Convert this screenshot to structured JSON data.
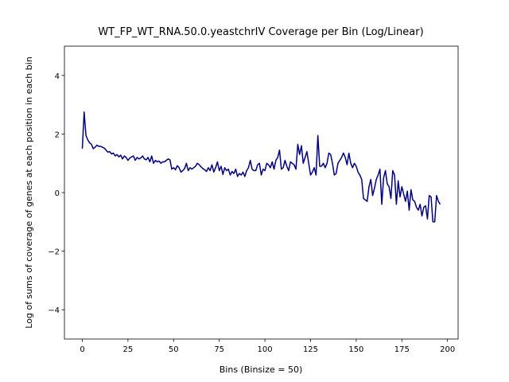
{
  "chart_data": {
    "type": "line",
    "title": "WT_FP_WT_RNA.50.0.yeastchrIV Coverage per Bin (Log/Linear)",
    "x_label": "Bins (Binsize = 50)",
    "y_label": "Log of sums of coverage of genes at each position in each bin",
    "xlim": [
      -9.8,
      205.8
    ],
    "ylim": [
      -5,
      5
    ],
    "xticks": [
      0,
      25,
      50,
      75,
      100,
      125,
      150,
      175,
      200
    ],
    "yticks": [
      {
        "value": -4,
        "label": "−4"
      },
      {
        "value": -2,
        "label": "−2"
      },
      0,
      2,
      4
    ],
    "x": [
      0,
      1,
      2,
      3,
      4,
      5,
      6,
      7,
      8,
      9,
      10,
      11,
      12,
      13,
      14,
      15,
      16,
      17,
      18,
      19,
      20,
      21,
      22,
      23,
      24,
      25,
      26,
      27,
      28,
      29,
      30,
      31,
      32,
      33,
      34,
      35,
      36,
      37,
      38,
      39,
      40,
      41,
      42,
      43,
      44,
      45,
      46,
      47,
      48,
      49,
      50,
      51,
      52,
      53,
      54,
      55,
      56,
      57,
      58,
      59,
      60,
      61,
      62,
      63,
      64,
      65,
      66,
      67,
      68,
      69,
      70,
      71,
      72,
      73,
      74,
      75,
      76,
      77,
      78,
      79,
      80,
      81,
      82,
      83,
      84,
      85,
      86,
      87,
      88,
      89,
      90,
      91,
      92,
      93,
      94,
      95,
      96,
      97,
      98,
      99,
      100,
      101,
      102,
      103,
      104,
      105,
      106,
      107,
      108,
      109,
      110,
      111,
      112,
      113,
      114,
      115,
      116,
      117,
      118,
      119,
      120,
      121,
      122,
      123,
      124,
      125,
      126,
      127,
      128,
      129,
      130,
      131,
      132,
      133,
      134,
      135,
      136,
      137,
      138,
      139,
      140,
      141,
      142,
      143,
      144,
      145,
      146,
      147,
      148,
      149,
      150,
      151,
      152,
      153,
      154,
      155,
      156,
      157,
      158,
      159,
      160,
      161,
      162,
      163,
      164,
      165,
      166,
      167,
      168,
      169,
      170,
      171,
      172,
      173,
      174,
      175,
      176,
      177,
      178,
      179,
      180,
      181,
      182,
      183,
      184,
      185,
      186,
      187,
      188,
      189,
      190,
      191,
      192,
      193,
      194,
      195,
      196
    ],
    "series": [
      {
        "color": "#000080",
        "values": [
          1.5,
          2.75,
          1.95,
          1.8,
          1.7,
          1.65,
          1.5,
          1.55,
          1.62,
          1.58,
          1.58,
          1.55,
          1.52,
          1.45,
          1.38,
          1.4,
          1.32,
          1.35,
          1.25,
          1.3,
          1.22,
          1.28,
          1.15,
          1.25,
          1.2,
          1.1,
          1.18,
          1.22,
          1.25,
          1.1,
          1.2,
          1.15,
          1.18,
          1.25,
          1.15,
          1.12,
          1.2,
          1.05,
          1.25,
          1.0,
          1.1,
          1.05,
          1.08,
          1.0,
          1.05,
          1.05,
          1.1,
          1.15,
          1.12,
          0.8,
          0.85,
          0.78,
          0.92,
          0.85,
          0.7,
          0.75,
          0.82,
          1.0,
          0.75,
          0.85,
          0.8,
          0.85,
          0.9,
          1.0,
          0.95,
          0.88,
          0.82,
          0.78,
          0.72,
          0.85,
          0.75,
          0.95,
          0.7,
          0.85,
          1.05,
          0.75,
          0.9,
          0.62,
          0.85,
          0.75,
          0.8,
          0.6,
          0.72,
          0.65,
          0.8,
          0.55,
          0.65,
          0.6,
          0.7,
          0.55,
          0.75,
          0.85,
          1.1,
          0.8,
          0.75,
          0.75,
          0.95,
          1.0,
          0.6,
          0.8,
          0.75,
          1.0,
          0.95,
          0.85,
          1.05,
          0.8,
          1.1,
          1.2,
          1.45,
          0.8,
          0.85,
          1.1,
          0.9,
          0.75,
          1.05,
          1.0,
          0.95,
          0.8,
          1.65,
          1.3,
          1.6,
          1.0,
          1.2,
          1.4,
          1.0,
          0.6,
          0.7,
          0.85,
          0.6,
          1.95,
          0.9,
          0.9,
          1.0,
          0.85,
          1.0,
          1.35,
          1.3,
          1.0,
          0.6,
          0.65,
          1.0,
          1.1,
          1.2,
          1.35,
          1.2,
          0.95,
          1.35,
          1.0,
          0.85,
          1.0,
          0.9,
          0.7,
          0.6,
          0.45,
          -0.2,
          -0.25,
          -0.3,
          0.2,
          0.45,
          -0.1,
          0.15,
          0.45,
          0.6,
          0.8,
          -0.4,
          0.5,
          0.75,
          0.3,
          0.2,
          -0.2,
          0.75,
          0.6,
          -0.4,
          0.4,
          -0.15,
          0.2,
          -0.05,
          -0.3,
          0.05,
          -0.6,
          0.1,
          -0.25,
          -0.3,
          -0.5,
          -0.6,
          -0.4,
          -0.8,
          -0.5,
          -0.45,
          -0.9,
          -0.1,
          -0.15,
          -1.0,
          -1.0,
          -0.1,
          -0.3,
          -0.4
        ]
      }
    ]
  }
}
